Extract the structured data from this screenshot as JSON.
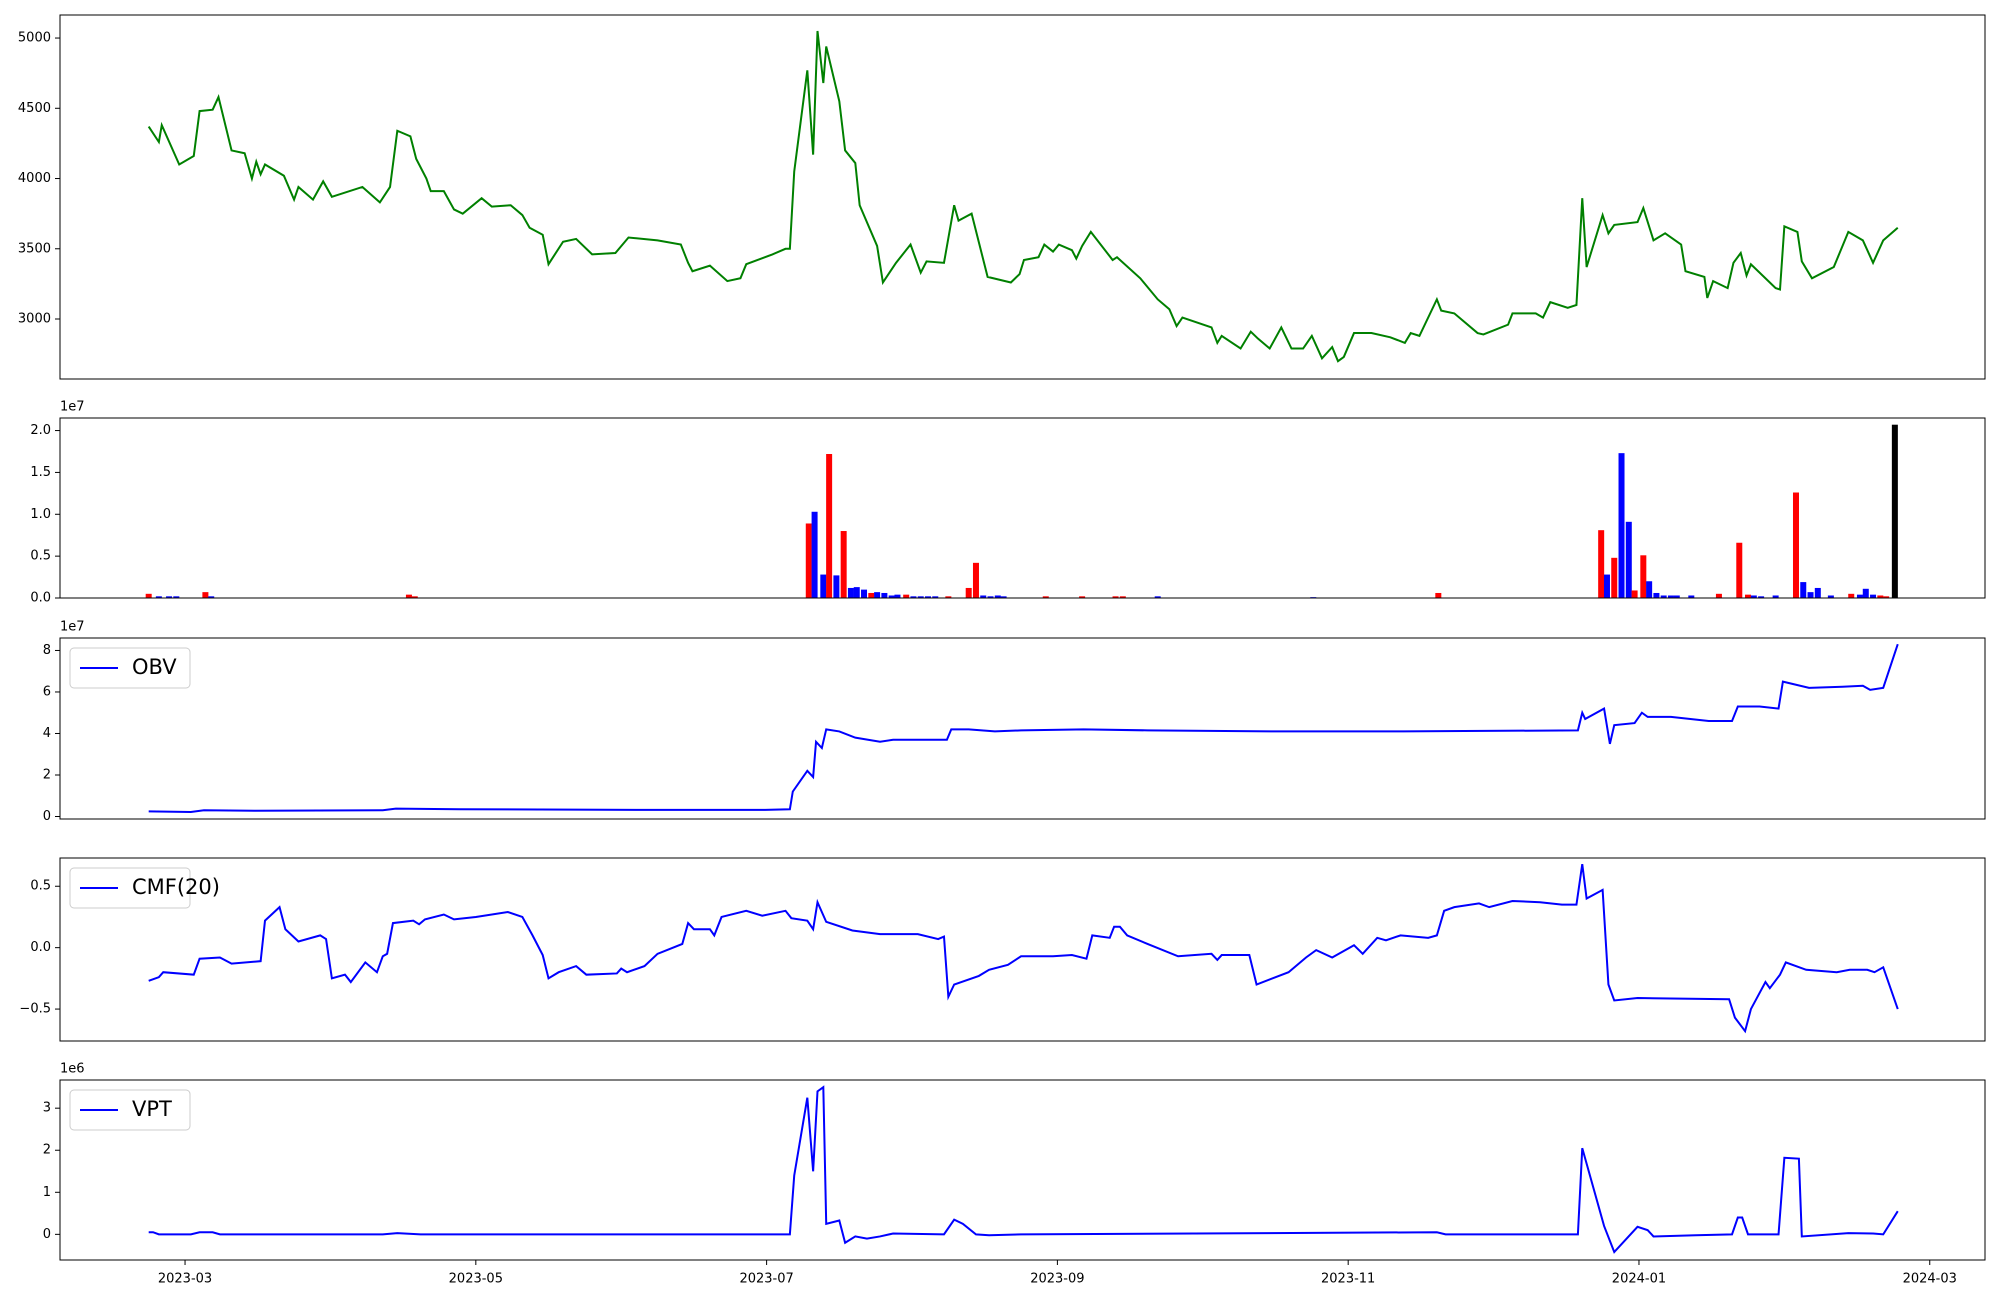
{
  "chart_data": [
    {
      "type": "line",
      "x": [
        0.75,
        0.82,
        0.84,
        0.96,
        1.06,
        1.1,
        1.19,
        1.23,
        1.32,
        1.41,
        1.46,
        1.49,
        1.52,
        1.55,
        1.68,
        1.75,
        1.78,
        1.88,
        1.95,
        2.01,
        2.22,
        2.34,
        2.41,
        2.46,
        2.55,
        2.59,
        2.66,
        2.69,
        2.78,
        2.85,
        2.91,
        3.04,
        3.11,
        3.24,
        3.32,
        3.37,
        3.46,
        3.5,
        3.6,
        3.69,
        3.8,
        3.96,
        4.05,
        4.25,
        4.41,
        4.46,
        4.49,
        4.61,
        4.73,
        4.82,
        4.86,
        5.04,
        5.13,
        5.16,
        5.19,
        5.28,
        5.32,
        5.35,
        5.39,
        5.41,
        5.5,
        5.54,
        5.61,
        5.64,
        5.76,
        5.8,
        5.89,
        5.99,
        6.06,
        6.1,
        6.22,
        6.29,
        6.32,
        6.41,
        6.52,
        6.68,
        6.74,
        6.77,
        6.87,
        6.91,
        6.97,
        7.01,
        7.1,
        7.13,
        7.17,
        7.23,
        7.38,
        7.41,
        7.57,
        7.69,
        7.77,
        7.82,
        7.86,
        8.06,
        8.1,
        8.13,
        8.26,
        8.33,
        8.38,
        8.46,
        8.54,
        8.61,
        8.69,
        8.75,
        8.82,
        8.89,
        8.93,
        8.97,
        9.04,
        9.16,
        9.29,
        9.39,
        9.43,
        9.49,
        9.61,
        9.64,
        9.73,
        9.89,
        9.93,
        10.1,
        10.13,
        10.29,
        10.34,
        10.39,
        10.51,
        10.57,
        10.61,
        10.64,
        10.75,
        10.79,
        10.83,
        10.99,
        11.03,
        11.1,
        11.18,
        11.29,
        11.32,
        11.45,
        11.47,
        11.51,
        11.61,
        11.65,
        11.7,
        11.74,
        11.77,
        11.94,
        11.97,
        12.0,
        12.09,
        12.12,
        12.19,
        12.34,
        12.44,
        12.54,
        12.61,
        12.68,
        12.78
      ],
      "series": [
        {
          "color": "#008000",
          "values": [
            4370,
            4260,
            4380,
            4100,
            4160,
            4480,
            4490,
            4580,
            4200,
            4180,
            4000,
            4120,
            4030,
            4100,
            4020,
            3850,
            3940,
            3850,
            3980,
            3870,
            3940,
            3830,
            3940,
            4340,
            4300,
            4140,
            4000,
            3910,
            3910,
            3780,
            3750,
            3860,
            3800,
            3810,
            3740,
            3650,
            3600,
            3390,
            3550,
            3570,
            3460,
            3470,
            3580,
            3560,
            3530,
            3400,
            3340,
            3380,
            3270,
            3290,
            3390,
            3460,
            3500,
            3500,
            4050,
            4770,
            4170,
            5050,
            4680,
            4940,
            4550,
            4200,
            4110,
            3810,
            3520,
            3260,
            3400,
            3530,
            3330,
            3410,
            3400,
            3810,
            3700,
            3750,
            3300,
            3260,
            3320,
            3420,
            3440,
            3530,
            3480,
            3530,
            3490,
            3430,
            3520,
            3620,
            3420,
            3440,
            3290,
            3140,
            3070,
            2950,
            3010,
            2940,
            2830,
            2880,
            2790,
            2910,
            2860,
            2790,
            2940,
            2790,
            2790,
            2880,
            2720,
            2800,
            2700,
            2730,
            2900,
            2900,
            2870,
            2830,
            2900,
            2880,
            3140,
            3060,
            3040,
            2900,
            2890,
            2960,
            3040,
            3040,
            3010,
            3120,
            3080,
            3100,
            3860,
            3370,
            3740,
            3610,
            3670,
            3690,
            3790,
            3560,
            3610,
            3530,
            3340,
            3300,
            3150,
            3270,
            3220,
            3400,
            3470,
            3310,
            3390,
            3220,
            3210,
            3660,
            3620,
            3410,
            3290,
            3370,
            3620,
            3560,
            3400,
            3560,
            3650
          ]
        }
      ],
      "xlim": [
        0.14,
        13.38
      ],
      "ylim": [
        2573,
        5164
      ],
      "yticks": [
        3000,
        3500,
        4000,
        4500,
        5000
      ]
    },
    {
      "type": "bar",
      "offset_text": "1e7",
      "x": [
        0.75,
        0.82,
        0.89,
        0.94,
        1.14,
        1.18,
        2.54,
        2.58,
        5.29,
        5.33,
        5.39,
        5.43,
        5.48,
        5.53,
        5.58,
        5.62,
        5.67,
        5.72,
        5.76,
        5.81,
        5.86,
        5.9,
        5.96,
        6.01,
        6.06,
        6.11,
        6.16,
        6.25,
        6.39,
        6.44,
        6.49,
        6.54,
        6.59,
        6.63,
        6.92,
        7.17,
        7.4,
        7.45,
        7.69,
        8.76,
        9.62,
        10.74,
        10.78,
        10.83,
        10.88,
        10.93,
        10.97,
        11.03,
        11.07,
        11.12,
        11.17,
        11.22,
        11.26,
        11.36,
        11.55,
        11.69,
        11.75,
        11.79,
        11.84,
        11.94,
        12.08,
        12.13,
        12.18,
        12.23,
        12.32,
        12.46,
        12.52,
        12.56,
        12.61,
        12.66,
        12.7,
        12.76
      ],
      "values": [
        500000,
        200000,
        200000,
        200000,
        700000,
        200000,
        400000,
        200000,
        8900000,
        10300000,
        2800000,
        17200000,
        2700000,
        8000000,
        1200000,
        1300000,
        1000000,
        600000,
        700000,
        600000,
        300000,
        400000,
        400000,
        200000,
        200000,
        200000,
        200000,
        200000,
        1200000,
        4200000,
        300000,
        200000,
        300000,
        200000,
        200000,
        200000,
        200000,
        200000,
        200000,
        100000,
        600000,
        8100000,
        2800000,
        4800000,
        17300000,
        9100000,
        900000,
        5100000,
        2000000,
        600000,
        300000,
        300000,
        300000,
        300000,
        500000,
        6600000,
        400000,
        300000,
        200000,
        300000,
        12600000,
        1900000,
        700000,
        1200000,
        300000,
        500000,
        400000,
        1100000,
        400000,
        300000,
        200000,
        20700000
      ],
      "colors": [
        "#ff0000",
        "#0000ff",
        "#0000ff",
        "#0000ff",
        "#ff0000",
        "#0000ff",
        "#ff0000",
        "#ff0000",
        "#ff0000",
        "#0000ff",
        "#0000ff",
        "#ff0000",
        "#0000ff",
        "#ff0000",
        "#0000ff",
        "#0000ff",
        "#0000ff",
        "#ff0000",
        "#0000ff",
        "#0000ff",
        "#0000ff",
        "#0000ff",
        "#ff0000",
        "#0000ff",
        "#0000ff",
        "#0000ff",
        "#0000ff",
        "#ff0000",
        "#ff0000",
        "#ff0000",
        "#0000ff",
        "#0000ff",
        "#0000ff",
        "#0000ff",
        "#ff0000",
        "#ff0000",
        "#ff0000",
        "#ff0000",
        "#0000ff",
        "#0000ff",
        "#ff0000",
        "#ff0000",
        "#0000ff",
        "#ff0000",
        "#0000ff",
        "#0000ff",
        "#ff0000",
        "#ff0000",
        "#0000ff",
        "#0000ff",
        "#0000ff",
        "#0000ff",
        "#0000ff",
        "#0000ff",
        "#ff0000",
        "#ff0000",
        "#ff0000",
        "#0000ff",
        "#0000ff",
        "#0000ff",
        "#ff0000",
        "#0000ff",
        "#0000ff",
        "#0000ff",
        "#0000ff",
        "#ff0000",
        "#0000ff",
        "#0000ff",
        "#0000ff",
        "#ff0000",
        "#ff0000",
        "#000000"
      ],
      "xlim": [
        0.14,
        13.38
      ],
      "ylim": [
        0,
        21500000
      ],
      "yticks": [
        {
          "value": 0,
          "label": "0.0"
        },
        {
          "value": 5000000,
          "label": "0.5"
        },
        {
          "value": 10000000,
          "label": "1.0"
        },
        {
          "value": 15000000,
          "label": "1.5"
        },
        {
          "value": 20000000,
          "label": "2.0"
        }
      ]
    },
    {
      "type": "line",
      "offset_text": "1e7",
      "legend": "upper left",
      "x": [
        0.75,
        1.04,
        1.13,
        1.48,
        2.36,
        2.45,
        2.89,
        4.11,
        4.99,
        5.16,
        5.18,
        5.28,
        5.32,
        5.34,
        5.38,
        5.41,
        5.5,
        5.61,
        5.78,
        5.87,
        6.24,
        6.27,
        6.39,
        6.57,
        6.75,
        7.18,
        7.62,
        8.5,
        9.38,
        10.58,
        10.61,
        10.63,
        10.76,
        10.8,
        10.83,
        10.97,
        11.02,
        11.06,
        11.22,
        11.48,
        11.64,
        11.68,
        11.83,
        11.96,
        11.99,
        12.17,
        12.4,
        12.54,
        12.59,
        12.68,
        12.78
      ],
      "series": [
        {
          "name": "OBV",
          "color": "#0000ff",
          "values": [
            2500000,
            2200000,
            3000000,
            2800000,
            3000000,
            3800000,
            3500000,
            3200000,
            3200000,
            3500000,
            12000000,
            22000000,
            19000000,
            36000000,
            33000000,
            42000000,
            41000000,
            38000000,
            36000000,
            37000000,
            37000000,
            42000000,
            42000000,
            41000000,
            41500000,
            42000000,
            41500000,
            41000000,
            41000000,
            41500000,
            50000000,
            47000000,
            52000000,
            35000000,
            44000000,
            45000000,
            50000000,
            48000000,
            48000000,
            46000000,
            46000000,
            53000000,
            53000000,
            52000000,
            65000000,
            62000000,
            62500000,
            63000000,
            61000000,
            62000000,
            83000000
          ]
        }
      ],
      "xlim": [
        0.14,
        13.38
      ],
      "ylim": [
        -1200000,
        86000000
      ],
      "yticks": [
        {
          "value": 0,
          "label": "0"
        },
        {
          "value": 20000000,
          "label": "2"
        },
        {
          "value": 40000000,
          "label": "4"
        },
        {
          "value": 60000000,
          "label": "6"
        },
        {
          "value": 80000000,
          "label": "8"
        }
      ]
    },
    {
      "type": "line",
      "legend": "upper left",
      "x": [
        0.75,
        0.82,
        0.85,
        1.06,
        1.1,
        1.24,
        1.32,
        1.52,
        1.55,
        1.65,
        1.69,
        1.78,
        1.93,
        1.97,
        2.01,
        2.1,
        2.14,
        2.24,
        2.32,
        2.36,
        2.39,
        2.43,
        2.57,
        2.61,
        2.65,
        2.78,
        2.85,
        3.0,
        3.22,
        3.32,
        3.39,
        3.46,
        3.5,
        3.57,
        3.69,
        3.76,
        3.97,
        4.0,
        4.04,
        4.16,
        4.25,
        4.42,
        4.46,
        4.5,
        4.61,
        4.64,
        4.69,
        4.86,
        4.97,
        5.13,
        5.17,
        5.28,
        5.32,
        5.35,
        5.41,
        5.59,
        5.78,
        6.04,
        6.18,
        6.22,
        6.25,
        6.29,
        6.46,
        6.53,
        6.66,
        6.75,
        6.97,
        7.1,
        7.2,
        7.24,
        7.36,
        7.39,
        7.43,
        7.48,
        7.62,
        7.83,
        8.06,
        8.1,
        8.13,
        8.32,
        8.37,
        8.59,
        8.71,
        8.78,
        8.89,
        9.04,
        9.1,
        9.2,
        9.26,
        9.36,
        9.55,
        9.61,
        9.66,
        9.73,
        9.9,
        9.97,
        10.13,
        10.32,
        10.47,
        10.57,
        10.61,
        10.64,
        10.75,
        10.79,
        10.83,
        10.99,
        11.62,
        11.66,
        11.73,
        11.77,
        11.87,
        11.9,
        11.97,
        12.01,
        12.15,
        12.36,
        12.45,
        12.57,
        12.62,
        12.68,
        12.78
      ],
      "series": [
        {
          "name": "CMF(20)",
          "color": "#0000ff",
          "values": [
            -0.27,
            -0.24,
            -0.2,
            -0.22,
            -0.09,
            -0.08,
            -0.13,
            -0.11,
            0.22,
            0.33,
            0.15,
            0.05,
            0.1,
            0.07,
            -0.25,
            -0.22,
            -0.28,
            -0.12,
            -0.2,
            -0.07,
            -0.05,
            0.2,
            0.22,
            0.19,
            0.23,
            0.27,
            0.23,
            0.25,
            0.29,
            0.25,
            0.1,
            -0.06,
            -0.25,
            -0.2,
            -0.15,
            -0.22,
            -0.21,
            -0.17,
            -0.2,
            -0.15,
            -0.05,
            0.03,
            0.2,
            0.15,
            0.15,
            0.1,
            0.25,
            0.3,
            0.26,
            0.3,
            0.24,
            0.22,
            0.15,
            0.37,
            0.21,
            0.14,
            0.11,
            0.11,
            0.07,
            0.09,
            -0.4,
            -0.3,
            -0.23,
            -0.18,
            -0.14,
            -0.07,
            -0.07,
            -0.06,
            -0.09,
            0.1,
            0.08,
            0.17,
            0.17,
            0.1,
            0.03,
            -0.07,
            -0.05,
            -0.1,
            -0.06,
            -0.06,
            -0.3,
            -0.2,
            -0.08,
            -0.02,
            -0.08,
            0.02,
            -0.05,
            0.08,
            0.06,
            0.1,
            0.08,
            0.1,
            0.3,
            0.33,
            0.36,
            0.33,
            0.38,
            0.37,
            0.35,
            0.35,
            0.68,
            0.4,
            0.47,
            -0.3,
            -0.43,
            -0.41,
            -0.42,
            -0.57,
            -0.68,
            -0.5,
            -0.28,
            -0.33,
            -0.22,
            -0.12,
            -0.18,
            -0.2,
            -0.18,
            -0.18,
            -0.2,
            -0.16,
            -0.5
          ]
        }
      ],
      "xlim": [
        0.14,
        13.38
      ],
      "ylim": [
        -0.76,
        0.73
      ],
      "yticks": [
        {
          "value": -0.5,
          "label": "−0.5"
        },
        {
          "value": 0,
          "label": "0.0"
        },
        0.5
      ]
    },
    {
      "type": "line",
      "offset_text": "1e6",
      "legend": "upper left",
      "x": [
        0.75,
        0.78,
        0.82,
        1.04,
        1.1,
        1.19,
        1.24,
        2.36,
        2.46,
        2.62,
        5.16,
        5.19,
        5.28,
        5.32,
        5.35,
        5.39,
        5.41,
        5.5,
        5.54,
        5.61,
        5.69,
        5.78,
        5.87,
        6.22,
        6.29,
        6.35,
        6.44,
        6.53,
        6.75,
        9.61,
        9.67,
        10.58,
        10.61,
        10.76,
        10.83,
        10.99,
        11.06,
        11.1,
        11.39,
        11.64,
        11.68,
        11.71,
        11.75,
        11.96,
        12.0,
        12.1,
        12.12,
        12.44,
        12.61,
        12.68,
        12.78
      ],
      "series": [
        {
          "name": "VPT",
          "color": "#0000ff",
          "values": [
            50000,
            50000,
            0,
            0,
            50000,
            50000,
            0,
            0,
            30000,
            0,
            0,
            1400000,
            3250000,
            1500000,
            3400000,
            3500000,
            250000,
            330000,
            -200000,
            -50000,
            -100000,
            -50000,
            20000,
            0,
            350000,
            250000,
            0,
            -20000,
            0,
            50000,
            0,
            0,
            2050000,
            200000,
            -420000,
            180000,
            100000,
            -50000,
            -20000,
            0,
            400000,
            400000,
            0,
            0,
            1820000,
            1800000,
            -50000,
            30000,
            20000,
            0,
            550000
          ]
        }
      ],
      "xlim": [
        0.14,
        13.38
      ],
      "ylim": [
        -610000,
        3670000
      ],
      "yticks": [
        {
          "value": 0,
          "label": "0"
        },
        {
          "value": 1000000,
          "label": "1"
        },
        {
          "value": 2000000,
          "label": "2"
        },
        {
          "value": 3000000,
          "label": "3"
        }
      ],
      "xticks": [
        {
          "value": 1,
          "label": "2023-03"
        },
        {
          "value": 3,
          "label": "2023-05"
        },
        {
          "value": 5,
          "label": "2023-07"
        },
        {
          "value": 7,
          "label": "2023-09"
        },
        {
          "value": 9,
          "label": "2023-11"
        },
        {
          "value": 11,
          "label": "2024-01"
        },
        {
          "value": 13,
          "label": "2024-03"
        }
      ]
    }
  ]
}
